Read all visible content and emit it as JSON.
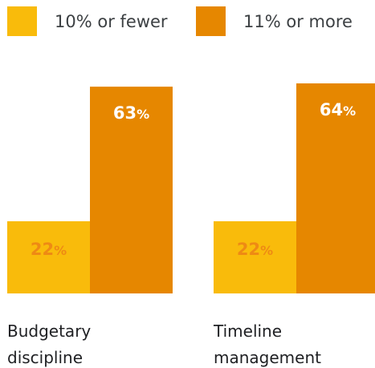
{
  "chart_data": {
    "type": "bar",
    "categories": [
      "Budgetary discipline",
      "Timeline management"
    ],
    "category_lines": [
      [
        "Budgetary",
        "discipline"
      ],
      [
        "Timeline",
        "management"
      ]
    ],
    "series": [
      {
        "name": "10% or fewer",
        "values": [
          22,
          22
        ],
        "labels": [
          "22%",
          "22%"
        ],
        "color": "#f9bb0b",
        "label_color": "#ee8a14"
      },
      {
        "name": "11% or more",
        "values": [
          63,
          64
        ],
        "labels": [
          "63%",
          "64%"
        ],
        "color": "#e68700",
        "label_color": "#ffffff"
      }
    ],
    "ylim": [
      0,
      64
    ],
    "grid": false,
    "legend_position": "top-left"
  }
}
